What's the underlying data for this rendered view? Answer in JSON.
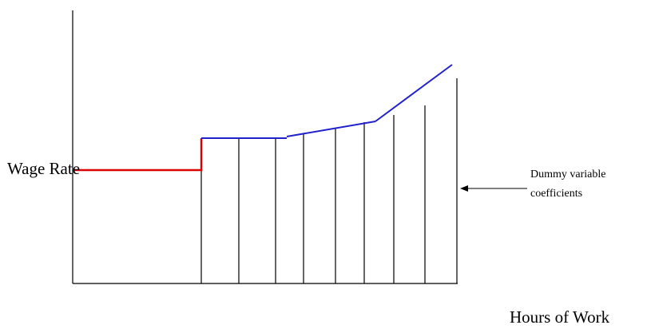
{
  "diagram": {
    "y_axis_label": "Wage Rate",
    "x_axis_label": "Hours of Work",
    "annotation": [
      "Dummy variable",
      "coefficients"
    ],
    "colors": {
      "axes": "#000000",
      "base_segment": "#dd0000",
      "upper_segments": "#2222cc",
      "vertical_lines": "#000000",
      "arrow": "#000000"
    }
  }
}
